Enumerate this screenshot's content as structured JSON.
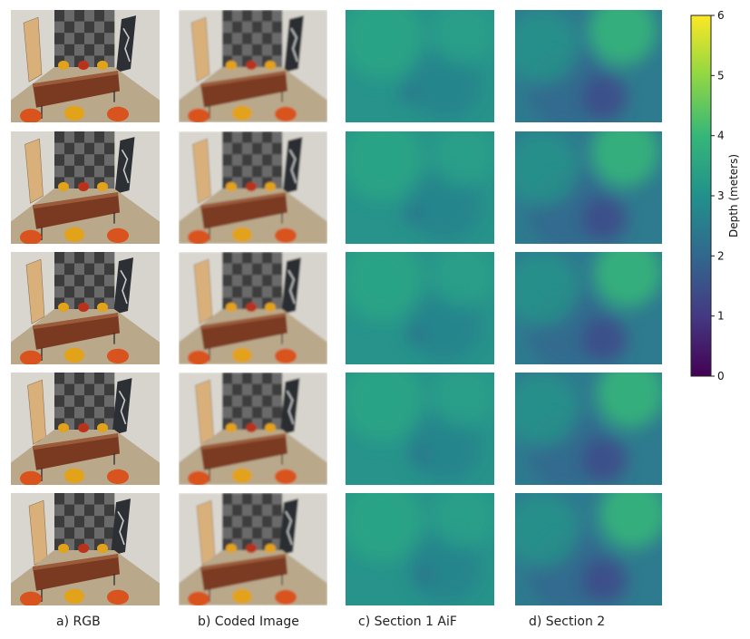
{
  "figure": {
    "row_count": 5,
    "columns": [
      {
        "id": "rgb",
        "caption": "a) RGB",
        "kind": "photo",
        "blurred": false
      },
      {
        "id": "coded",
        "caption": "b) Coded Image",
        "kind": "photo",
        "blurred": true
      },
      {
        "id": "aif",
        "caption": "c) Section 1 AiF",
        "kind": "depth",
        "tone": "cool-teal"
      },
      {
        "id": "section2",
        "caption": "d) Section 2",
        "kind": "depth",
        "tone": "teal-blue-green"
      }
    ]
  },
  "colorbar": {
    "label": "Depth (meters)",
    "ticks": [
      "0",
      "1",
      "2",
      "3",
      "4",
      "5",
      "6"
    ],
    "min": 0,
    "max": 6,
    "colormap": "viridis",
    "colors": [
      "#440154",
      "#443983",
      "#31688e",
      "#21918c",
      "#35b779",
      "#90d743",
      "#fde725"
    ]
  },
  "scene_colors": {
    "wall_left": "#d9d6cf",
    "wall_right": "#d7d4cd",
    "checker_dark": "#3c3c3c",
    "checker_light": "#6a6a6a",
    "floor": "#b9a88a",
    "table": "#7a3a22",
    "chair_orange": "#d9531e",
    "chair_yellow": "#e2a21a",
    "left_panel": "#d9b07a",
    "right_painting": "#2c2f33"
  }
}
